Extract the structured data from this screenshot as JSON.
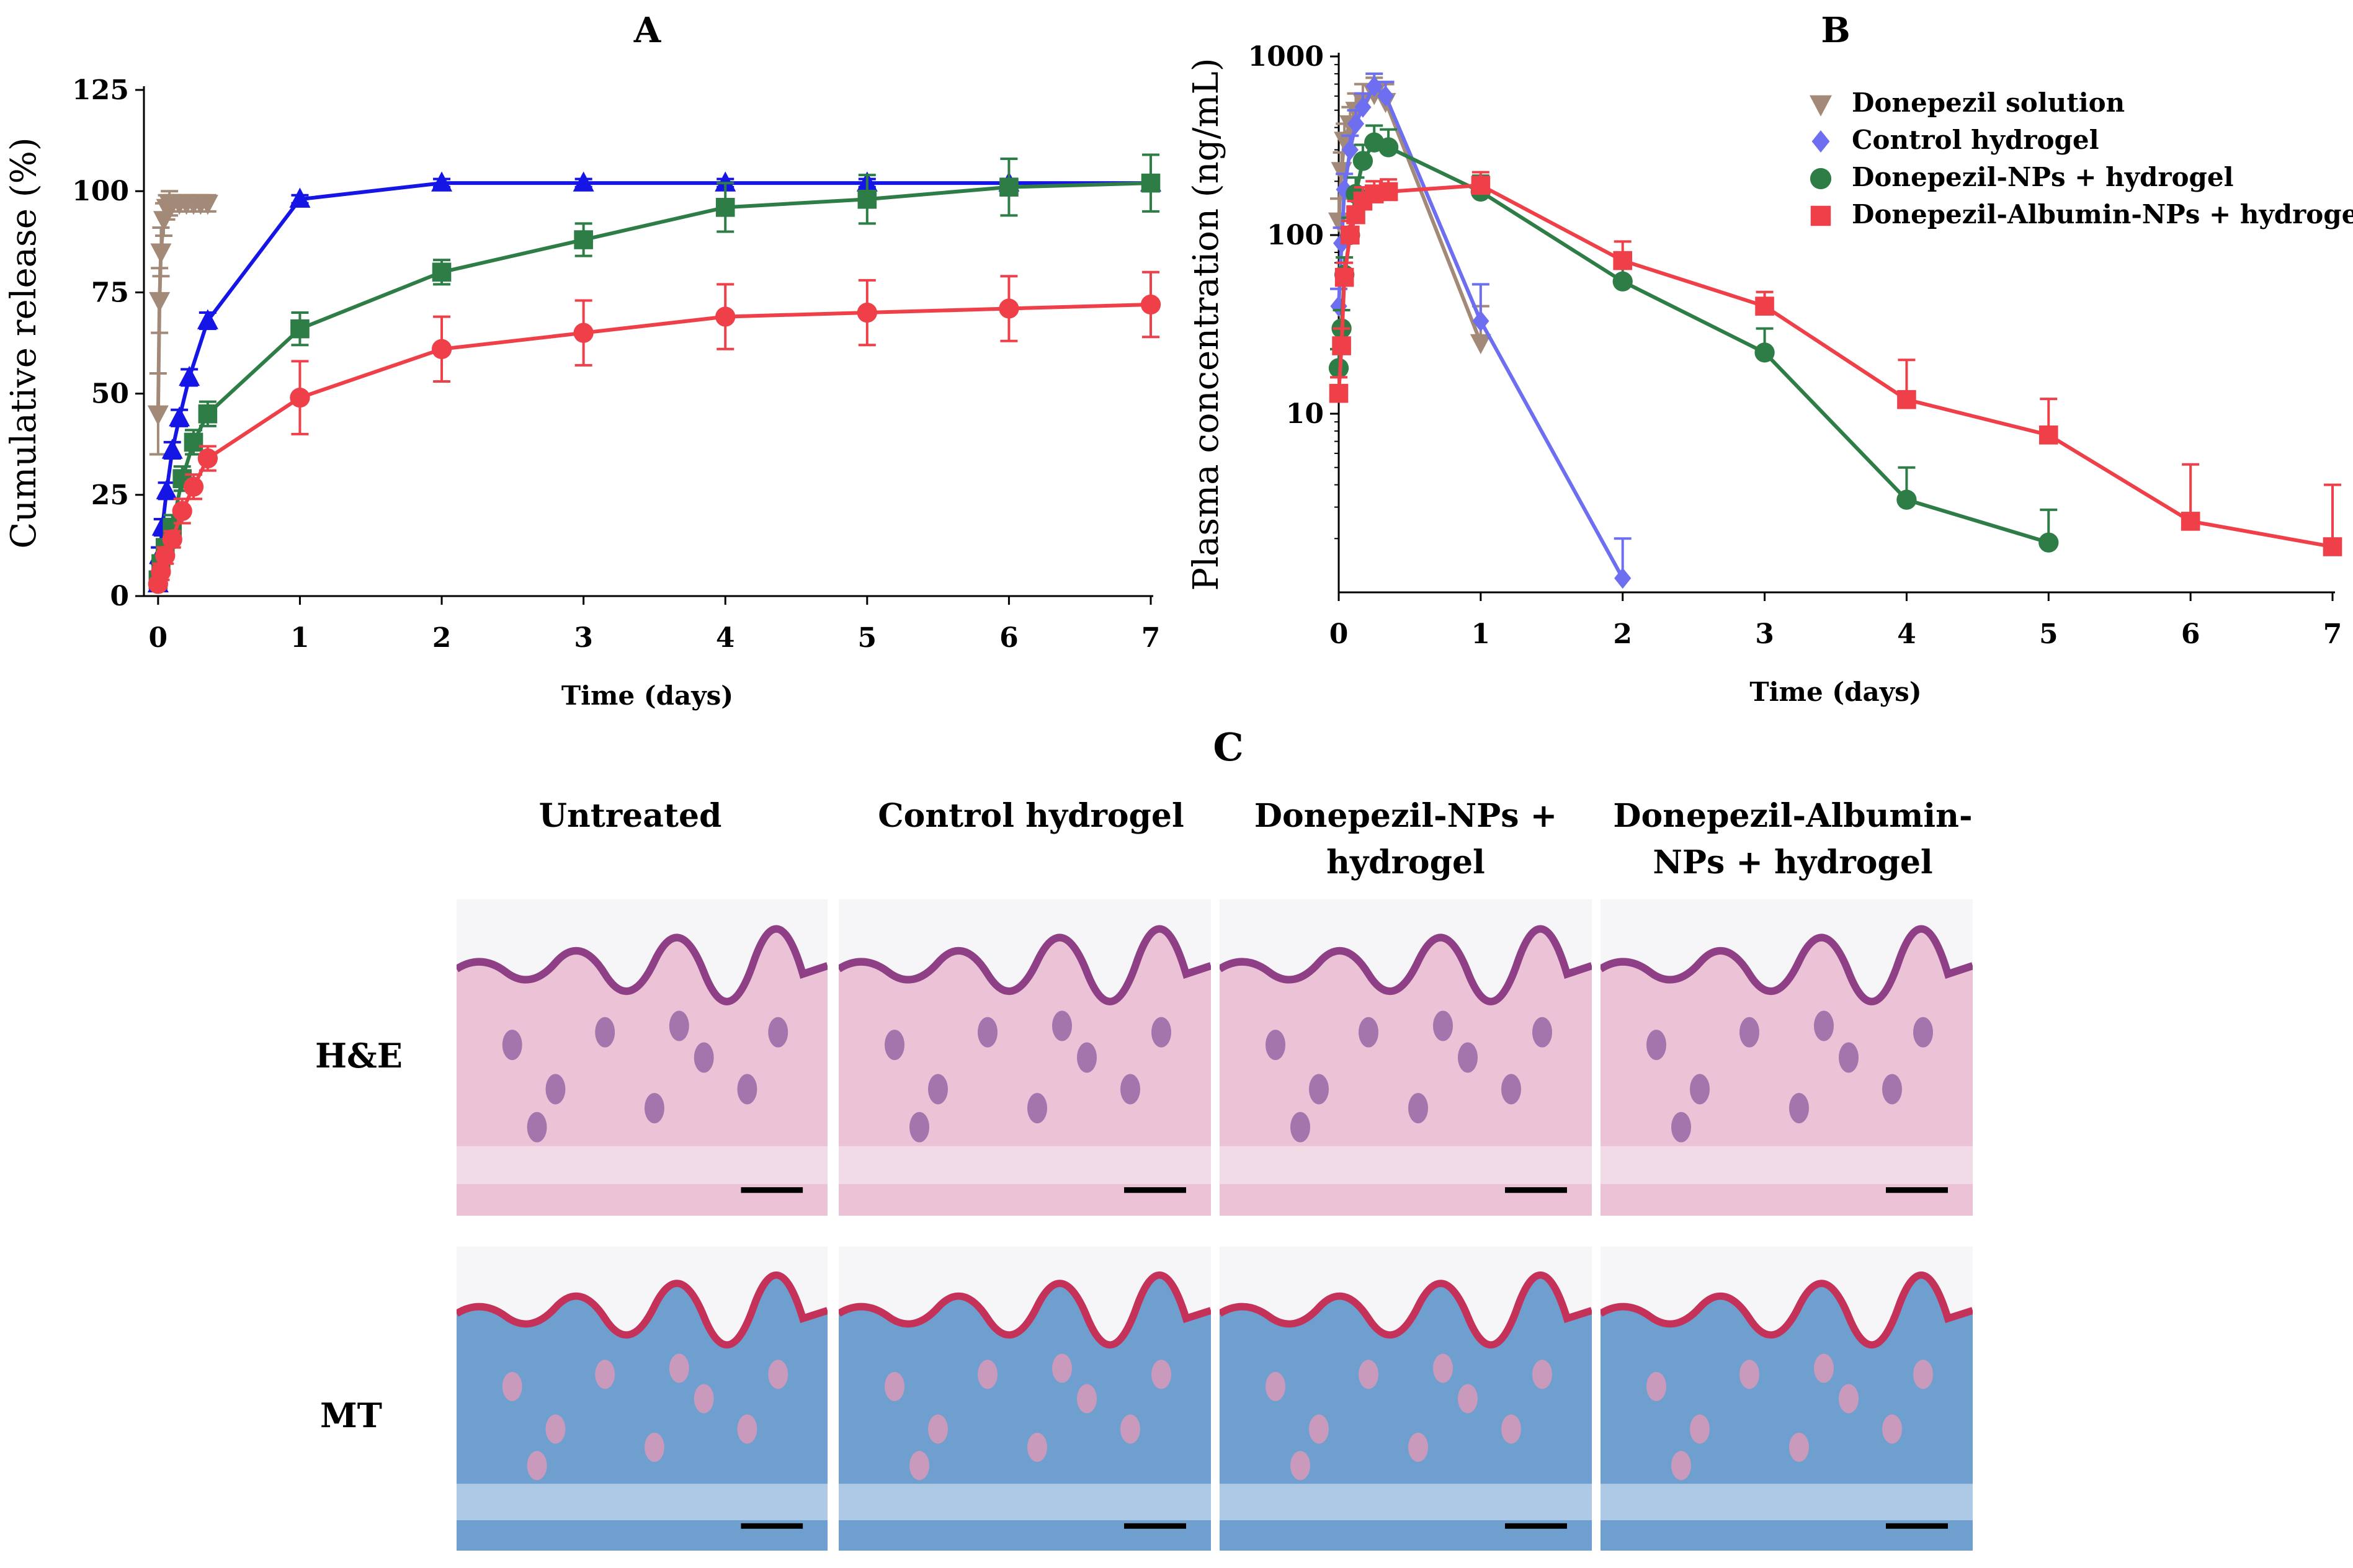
{
  "panel_c": {
    "letter": "C",
    "columns": [
      "Untreated",
      "Control hydrogel",
      "Donepezil-NPs +\nhydrogel",
      "Donepezil-Albumin-\nNPs + hydrogel"
    ],
    "rows": [
      "H&E",
      "MT"
    ]
  },
  "chart_data": [
    {
      "type": "line",
      "panel": "A",
      "title": "A",
      "xlabel": "Time (days)",
      "ylabel": "Cumulative release (%)",
      "xlim": [
        -0.1,
        7
      ],
      "ylim": [
        0,
        125
      ],
      "xticks": [
        0,
        1,
        2,
        3,
        4,
        5,
        6,
        7
      ],
      "yticks": [
        0,
        25,
        50,
        75,
        100,
        125
      ],
      "series": [
        {
          "name": "Donepezil solution",
          "color": "#a38a78",
          "marker": "triangle-down",
          "x": [
            0,
            0.01,
            0.02,
            0.04,
            0.06,
            0.08,
            0.1,
            0.15,
            0.2,
            0.25,
            0.3,
            0.35
          ],
          "y": [
            45,
            73,
            85,
            93,
            96,
            97,
            97,
            97,
            97,
            97,
            97,
            97
          ],
          "err": [
            10,
            8,
            6,
            4,
            3,
            3,
            2,
            2,
            2,
            2,
            2,
            2
          ]
        },
        {
          "name": "Control hydrogel",
          "color": "#1515e6",
          "marker": "triangle-up",
          "x": [
            0,
            0.01,
            0.03,
            0.06,
            0.1,
            0.15,
            0.22,
            0.35,
            1,
            2,
            3,
            4,
            5,
            6,
            7
          ],
          "y": [
            3,
            10,
            17,
            26,
            36,
            44,
            54,
            68,
            98,
            102,
            102,
            102,
            102,
            102,
            102
          ],
          "err": [
            1,
            2,
            2,
            2,
            2,
            2,
            2,
            2,
            1,
            1,
            1,
            1,
            1,
            1,
            1
          ]
        },
        {
          "name": "Donepezil-NPs + hydrogel",
          "color": "#2e7d46",
          "marker": "square",
          "x": [
            0,
            0.02,
            0.05,
            0.1,
            0.17,
            0.25,
            0.35,
            1,
            2,
            3,
            4,
            5,
            6,
            7
          ],
          "y": [
            4,
            8,
            12,
            17,
            29,
            38,
            45,
            66,
            80,
            88,
            96,
            98,
            101,
            102
          ],
          "err": [
            1,
            2,
            2,
            3,
            3,
            3,
            3,
            4,
            3,
            4,
            6,
            6,
            7,
            7
          ]
        },
        {
          "name": "Donepezil-Albumin-NPs + hydrogel",
          "color": "#ef4049",
          "marker": "circle",
          "x": [
            0,
            0.02,
            0.05,
            0.1,
            0.17,
            0.25,
            0.35,
            1,
            2,
            3,
            4,
            5,
            6,
            7
          ],
          "y": [
            3,
            6,
            10,
            14,
            21,
            27,
            34,
            49,
            61,
            65,
            69,
            70,
            71,
            72
          ],
          "err": [
            1,
            2,
            2,
            2,
            3,
            3,
            3,
            9,
            8,
            8,
            8,
            8,
            8,
            8
          ]
        }
      ]
    },
    {
      "type": "line",
      "panel": "B",
      "title": "B",
      "xlabel": "Time (days)",
      "ylabel": "Plasma concentration (ng/mL)",
      "yscale": "log",
      "xlim": [
        0,
        7
      ],
      "ylim": [
        1,
        1000
      ],
      "xticks": [
        0,
        1,
        2,
        3,
        4,
        5,
        6,
        7
      ],
      "yticks": [
        10,
        100,
        1000
      ],
      "legend_position": "top-right",
      "series": [
        {
          "name": "Donepezil solution",
          "color": "#a38a78",
          "marker": "triangle-down",
          "x": [
            0,
            0.02,
            0.04,
            0.08,
            0.12,
            0.17,
            0.25,
            0.33,
            1
          ],
          "y": [
            120,
            230,
            340,
            420,
            500,
            560,
            620,
            560,
            25
          ],
          "err": [
            40,
            60,
            80,
            100,
            120,
            140,
            140,
            140,
            15
          ]
        },
        {
          "name": "Control hydrogel",
          "color": "#6e6ef0",
          "marker": "diamond",
          "x": [
            0,
            0.02,
            0.04,
            0.08,
            0.12,
            0.17,
            0.25,
            0.33,
            1,
            2
          ],
          "y": [
            40,
            90,
            180,
            300,
            420,
            520,
            680,
            600,
            33,
            1.2
          ],
          "err": [
            10,
            20,
            40,
            60,
            80,
            100,
            120,
            120,
            20,
            0.8
          ]
        },
        {
          "name": "Donepezil-NPs + hydrogel",
          "color": "#2e7d46",
          "marker": "circle",
          "x": [
            0,
            0.02,
            0.04,
            0.08,
            0.12,
            0.17,
            0.25,
            0.35,
            1,
            2,
            3,
            4,
            5
          ],
          "y": [
            18,
            30,
            60,
            100,
            170,
            260,
            330,
            310,
            175,
            55,
            22,
            3.3,
            1.9
          ],
          "err": [
            5,
            8,
            15,
            25,
            40,
            60,
            80,
            80,
            40,
            20,
            8,
            1.7,
            1
          ]
        },
        {
          "name": "Donepezil-Albumin-NPs + hydrogel",
          "color": "#ef4049",
          "marker": "square",
          "x": [
            0,
            0.02,
            0.04,
            0.08,
            0.12,
            0.17,
            0.25,
            0.35,
            1,
            2,
            3,
            4,
            5,
            6,
            7
          ],
          "y": [
            13,
            24,
            58,
            100,
            130,
            155,
            170,
            175,
            190,
            72,
            40,
            12,
            7.6,
            2.5,
            1.8
          ],
          "err": [
            3,
            6,
            12,
            20,
            25,
            30,
            30,
            30,
            35,
            20,
            8,
            8,
            4.5,
            2.7,
            2.2
          ]
        }
      ]
    }
  ]
}
